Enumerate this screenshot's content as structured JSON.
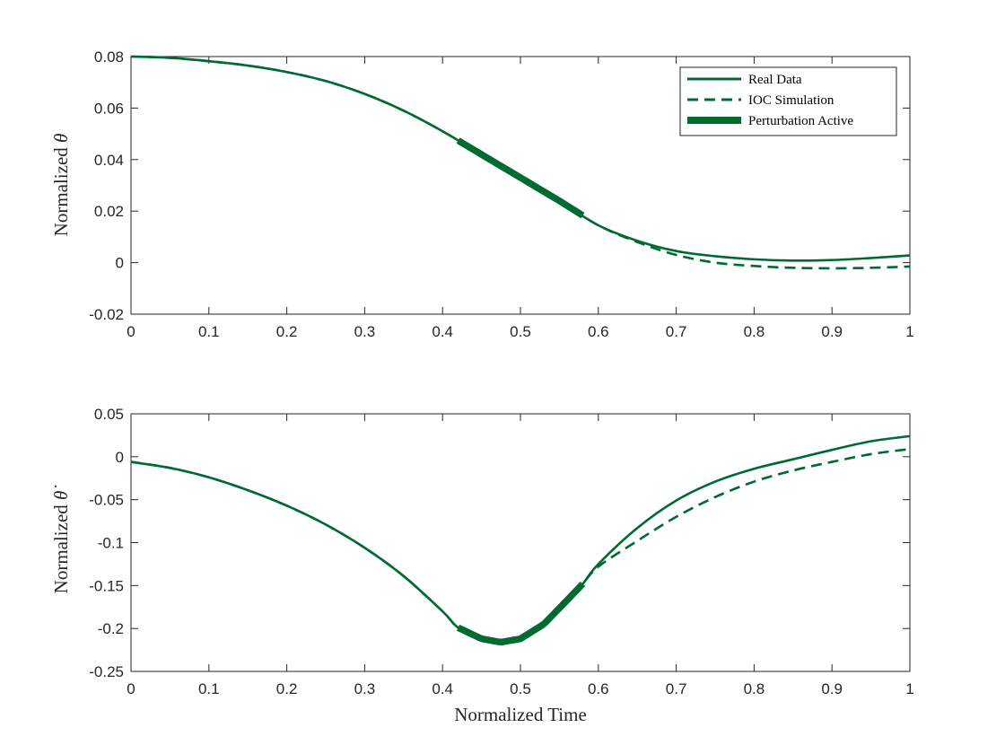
{
  "chart_data": [
    {
      "type": "line",
      "id": "theta",
      "xlabel": "",
      "ylabel_prefix": "Normalized",
      "ylabel_symbol": "θ",
      "xlim": [
        0,
        1
      ],
      "ylim": [
        -0.02,
        0.08
      ],
      "xticks": [
        "0",
        "0.1",
        "0.2",
        "0.3",
        "0.4",
        "0.5",
        "0.6",
        "0.7",
        "0.8",
        "0.9",
        "1"
      ],
      "yticks": [
        "-0.02",
        "0",
        "0.02",
        "0.04",
        "0.06",
        "0.08"
      ],
      "grid": false,
      "legend_position": "top-right",
      "perturbation_range": [
        0.42,
        0.58
      ],
      "series": [
        {
          "name": "Real Data",
          "style": "solid",
          "x": [
            0,
            0.05,
            0.1,
            0.15,
            0.2,
            0.25,
            0.3,
            0.35,
            0.4,
            0.45,
            0.5,
            0.55,
            0.6,
            0.65,
            0.7,
            0.75,
            0.8,
            0.85,
            0.9,
            0.95,
            1.0
          ],
          "y": [
            0.08,
            0.0795,
            0.0782,
            0.0765,
            0.074,
            0.0705,
            0.0655,
            0.059,
            0.051,
            0.042,
            0.033,
            0.024,
            0.0145,
            0.0085,
            0.0045,
            0.0025,
            0.0013,
            0.0008,
            0.001,
            0.0018,
            0.0028
          ]
        },
        {
          "name": "IOC Simulation",
          "style": "dashed",
          "x": [
            0,
            0.05,
            0.1,
            0.15,
            0.2,
            0.25,
            0.3,
            0.35,
            0.4,
            0.45,
            0.5,
            0.55,
            0.6,
            0.65,
            0.7,
            0.75,
            0.8,
            0.85,
            0.9,
            0.95,
            1.0
          ],
          "y": [
            0.08,
            0.0795,
            0.0782,
            0.0765,
            0.074,
            0.0705,
            0.0655,
            0.059,
            0.051,
            0.042,
            0.033,
            0.024,
            0.0145,
            0.008,
            0.003,
            0.0,
            -0.0013,
            -0.002,
            -0.0022,
            -0.002,
            -0.0015
          ]
        }
      ],
      "legend": [
        {
          "label": "Real Data",
          "style": "solid"
        },
        {
          "label": "IOC Simulation",
          "style": "dashed"
        },
        {
          "label": "Perturbation Active",
          "style": "thick"
        }
      ]
    },
    {
      "type": "line",
      "id": "theta_dot",
      "xlabel": "Normalized Time",
      "ylabel_prefix": "Normalized",
      "ylabel_symbol": "θ̇",
      "xlim": [
        0,
        1
      ],
      "ylim": [
        -0.25,
        0.05
      ],
      "xticks": [
        "0",
        "0.1",
        "0.2",
        "0.3",
        "0.4",
        "0.5",
        "0.6",
        "0.7",
        "0.8",
        "0.9",
        "1"
      ],
      "yticks": [
        "-0.25",
        "-0.2",
        "-0.15",
        "-0.1",
        "-0.05",
        "0",
        "0.05"
      ],
      "grid": false,
      "perturbation_range": [
        0.42,
        0.58
      ],
      "series": [
        {
          "name": "Real Data",
          "style": "solid",
          "x": [
            0,
            0.05,
            0.1,
            0.15,
            0.2,
            0.25,
            0.3,
            0.35,
            0.4,
            0.42,
            0.45,
            0.475,
            0.5,
            0.53,
            0.56,
            0.58,
            0.6,
            0.65,
            0.7,
            0.75,
            0.8,
            0.85,
            0.9,
            0.95,
            1.0
          ],
          "y": [
            -0.006,
            -0.013,
            -0.024,
            -0.039,
            -0.057,
            -0.079,
            -0.106,
            -0.139,
            -0.18,
            -0.199,
            -0.212,
            -0.216,
            -0.212,
            -0.195,
            -0.167,
            -0.148,
            -0.125,
            -0.083,
            -0.051,
            -0.029,
            -0.014,
            -0.003,
            0.008,
            0.018,
            0.024
          ]
        },
        {
          "name": "IOC Simulation",
          "style": "dashed",
          "x": [
            0,
            0.05,
            0.1,
            0.15,
            0.2,
            0.25,
            0.3,
            0.35,
            0.4,
            0.42,
            0.45,
            0.475,
            0.5,
            0.53,
            0.56,
            0.58,
            0.6,
            0.65,
            0.7,
            0.75,
            0.8,
            0.85,
            0.9,
            0.95,
            1.0
          ],
          "y": [
            -0.006,
            -0.013,
            -0.024,
            -0.039,
            -0.057,
            -0.079,
            -0.106,
            -0.139,
            -0.18,
            -0.199,
            -0.212,
            -0.216,
            -0.212,
            -0.195,
            -0.167,
            -0.148,
            -0.128,
            -0.098,
            -0.07,
            -0.047,
            -0.029,
            -0.016,
            -0.006,
            0.003,
            0.009
          ]
        }
      ]
    }
  ],
  "colors": {
    "line": "#006a31"
  }
}
